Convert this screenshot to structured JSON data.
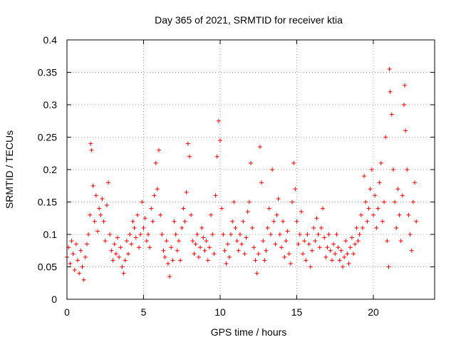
{
  "chart_data": {
    "type": "scatter",
    "title": "Day 365 of 2021, SRMTID for receiver ktia",
    "xlabel": "GPS time / hours",
    "ylabel": "SRMTID / TECUs",
    "xlim": [
      0,
      24
    ],
    "ylim": [
      0,
      0.4
    ],
    "x_ticks": [
      0,
      5,
      10,
      15,
      20
    ],
    "x_tick_labels": [
      "0",
      "5",
      "10",
      "15",
      "20"
    ],
    "y_ticks": [
      0,
      0.05,
      0.1,
      0.15,
      0.2,
      0.25,
      0.3,
      0.35,
      0.4
    ],
    "y_tick_labels": [
      "0",
      "0.05",
      "0.1",
      "0.15",
      "0.2",
      "0.25",
      "0.3",
      "0.35",
      "0.4"
    ],
    "grid": true,
    "marker": "+",
    "series": [
      {
        "name": "SRMTID",
        "color": "#ff0000",
        "points": [
          [
            0.0,
            0.065
          ],
          [
            0.1,
            0.08
          ],
          [
            0.2,
            0.055
          ],
          [
            0.3,
            0.09
          ],
          [
            0.4,
            0.07
          ],
          [
            0.5,
            0.045
          ],
          [
            0.6,
            0.085
          ],
          [
            0.7,
            0.06
          ],
          [
            0.8,
            0.04
          ],
          [
            0.9,
            0.075
          ],
          [
            1.0,
            0.05
          ],
          [
            1.1,
            0.03
          ],
          [
            1.2,
            0.065
          ],
          [
            1.3,
            0.085
          ],
          [
            1.4,
            0.1
          ],
          [
            1.5,
            0.13
          ],
          [
            1.55,
            0.24
          ],
          [
            1.6,
            0.23
          ],
          [
            1.7,
            0.175
          ],
          [
            1.8,
            0.12
          ],
          [
            1.9,
            0.16
          ],
          [
            2.0,
            0.105
          ],
          [
            2.1,
            0.14
          ],
          [
            2.2,
            0.13
          ],
          [
            2.3,
            0.155
          ],
          [
            2.4,
            0.12
          ],
          [
            2.5,
            0.09
          ],
          [
            2.6,
            0.145
          ],
          [
            2.7,
            0.18
          ],
          [
            2.8,
            0.1
          ],
          [
            2.9,
            0.075
          ],
          [
            3.0,
            0.06
          ],
          [
            3.1,
            0.085
          ],
          [
            3.2,
            0.07
          ],
          [
            3.3,
            0.095
          ],
          [
            3.4,
            0.065
          ],
          [
            3.5,
            0.08
          ],
          [
            3.6,
            0.05
          ],
          [
            3.7,
            0.04
          ],
          [
            3.8,
            0.06
          ],
          [
            3.9,
            0.09
          ],
          [
            4.0,
            0.07
          ],
          [
            4.1,
            0.1
          ],
          [
            4.2,
            0.085
          ],
          [
            4.3,
            0.12
          ],
          [
            4.4,
            0.11
          ],
          [
            4.5,
            0.095
          ],
          [
            4.6,
            0.13
          ],
          [
            4.7,
            0.08
          ],
          [
            4.8,
            0.1
          ],
          [
            4.9,
            0.15
          ],
          [
            5.0,
            0.11
          ],
          [
            5.1,
            0.125
          ],
          [
            5.2,
            0.09
          ],
          [
            5.3,
            0.1
          ],
          [
            5.4,
            0.08
          ],
          [
            5.5,
            0.14
          ],
          [
            5.6,
            0.12
          ],
          [
            5.7,
            0.16
          ],
          [
            5.8,
            0.21
          ],
          [
            5.9,
            0.17
          ],
          [
            6.0,
            0.23
          ],
          [
            6.1,
            0.13
          ],
          [
            6.2,
            0.1
          ],
          [
            6.3,
            0.075
          ],
          [
            6.4,
            0.065
          ],
          [
            6.5,
            0.09
          ],
          [
            6.6,
            0.055
          ],
          [
            6.7,
            0.035
          ],
          [
            6.8,
            0.08
          ],
          [
            6.9,
            0.06
          ],
          [
            7.0,
            0.12
          ],
          [
            7.1,
            0.1
          ],
          [
            7.2,
            0.075
          ],
          [
            7.3,
            0.09
          ],
          [
            7.4,
            0.06
          ],
          [
            7.5,
            0.11
          ],
          [
            7.6,
            0.14
          ],
          [
            7.7,
            0.12
          ],
          [
            7.8,
            0.165
          ],
          [
            7.9,
            0.24
          ],
          [
            8.0,
            0.22
          ],
          [
            8.1,
            0.13
          ],
          [
            8.2,
            0.09
          ],
          [
            8.3,
            0.07
          ],
          [
            8.4,
            0.085
          ],
          [
            8.5,
            0.1
          ],
          [
            8.6,
            0.065
          ],
          [
            8.7,
            0.08
          ],
          [
            8.8,
            0.11
          ],
          [
            8.9,
            0.095
          ],
          [
            9.0,
            0.075
          ],
          [
            9.1,
            0.09
          ],
          [
            9.2,
            0.06
          ],
          [
            9.3,
            0.08
          ],
          [
            9.4,
            0.13
          ],
          [
            9.5,
            0.1
          ],
          [
            9.6,
            0.07
          ],
          [
            9.7,
            0.16
          ],
          [
            9.8,
            0.22
          ],
          [
            9.9,
            0.275
          ],
          [
            10.0,
            0.245
          ],
          [
            10.1,
            0.14
          ],
          [
            10.2,
            0.1
          ],
          [
            10.3,
            0.075
          ],
          [
            10.4,
            0.055
          ],
          [
            10.5,
            0.085
          ],
          [
            10.6,
            0.065
          ],
          [
            10.7,
            0.1
          ],
          [
            10.8,
            0.12
          ],
          [
            10.9,
            0.15
          ],
          [
            11.0,
            0.11
          ],
          [
            11.1,
            0.09
          ],
          [
            11.2,
            0.075
          ],
          [
            11.3,
            0.1
          ],
          [
            11.4,
            0.085
          ],
          [
            11.5,
            0.12
          ],
          [
            11.6,
            0.07
          ],
          [
            11.7,
            0.095
          ],
          [
            11.8,
            0.135
          ],
          [
            11.9,
            0.15
          ],
          [
            12.0,
            0.21
          ],
          [
            12.1,
            0.11
          ],
          [
            12.2,
            0.08
          ],
          [
            12.3,
            0.06
          ],
          [
            12.4,
            0.04
          ],
          [
            12.5,
            0.07
          ],
          [
            12.6,
            0.235
          ],
          [
            12.7,
            0.18
          ],
          [
            12.8,
            0.09
          ],
          [
            12.9,
            0.06
          ],
          [
            13.0,
            0.075
          ],
          [
            13.1,
            0.11
          ],
          [
            13.2,
            0.14
          ],
          [
            13.3,
            0.1
          ],
          [
            13.4,
            0.2
          ],
          [
            13.5,
            0.12
          ],
          [
            13.6,
            0.085
          ],
          [
            13.7,
            0.13
          ],
          [
            13.8,
            0.155
          ],
          [
            13.9,
            0.1
          ],
          [
            14.0,
            0.08
          ],
          [
            14.1,
            0.12
          ],
          [
            14.2,
            0.065
          ],
          [
            14.3,
            0.09
          ],
          [
            14.4,
            0.105
          ],
          [
            14.5,
            0.07
          ],
          [
            14.6,
            0.055
          ],
          [
            14.7,
            0.15
          ],
          [
            14.8,
            0.21
          ],
          [
            14.9,
            0.17
          ],
          [
            15.0,
            0.12
          ],
          [
            15.1,
            0.085
          ],
          [
            15.2,
            0.1
          ],
          [
            15.3,
            0.135
          ],
          [
            15.4,
            0.07
          ],
          [
            15.5,
            0.09
          ],
          [
            15.6,
            0.06
          ],
          [
            15.7,
            0.1
          ],
          [
            15.8,
            0.085
          ],
          [
            15.9,
            0.05
          ],
          [
            16.0,
            0.075
          ],
          [
            16.1,
            0.11
          ],
          [
            16.2,
            0.09
          ],
          [
            16.3,
            0.125
          ],
          [
            16.4,
            0.1
          ],
          [
            16.5,
            0.08
          ],
          [
            16.6,
            0.11
          ],
          [
            16.7,
            0.14
          ],
          [
            16.8,
            0.095
          ],
          [
            16.9,
            0.065
          ],
          [
            17.0,
            0.08
          ],
          [
            17.1,
            0.1
          ],
          [
            17.2,
            0.075
          ],
          [
            17.3,
            0.06
          ],
          [
            17.4,
            0.085
          ],
          [
            17.5,
            0.07
          ],
          [
            17.6,
            0.1
          ],
          [
            17.7,
            0.08
          ],
          [
            17.8,
            0.06
          ],
          [
            17.9,
            0.075
          ],
          [
            18.0,
            0.05
          ],
          [
            18.1,
            0.065
          ],
          [
            18.2,
            0.09
          ],
          [
            18.3,
            0.07
          ],
          [
            18.4,
            0.055
          ],
          [
            18.5,
            0.08
          ],
          [
            18.6,
            0.095
          ],
          [
            18.7,
            0.07
          ],
          [
            18.8,
            0.085
          ],
          [
            18.9,
            0.11
          ],
          [
            19.0,
            0.09
          ],
          [
            19.1,
            0.1
          ],
          [
            19.2,
            0.13
          ],
          [
            19.3,
            0.11
          ],
          [
            19.4,
            0.19
          ],
          [
            19.5,
            0.15
          ],
          [
            19.6,
            0.12
          ],
          [
            19.7,
            0.14
          ],
          [
            19.8,
            0.17
          ],
          [
            19.9,
            0.2
          ],
          [
            20.0,
            0.13
          ],
          [
            20.1,
            0.16
          ],
          [
            20.2,
            0.11
          ],
          [
            20.3,
            0.14
          ],
          [
            20.4,
            0.18
          ],
          [
            20.5,
            0.21
          ],
          [
            20.6,
            0.12
          ],
          [
            20.7,
            0.15
          ],
          [
            20.8,
            0.25
          ],
          [
            20.9,
            0.09
          ],
          [
            21.0,
            0.05
          ],
          [
            21.05,
            0.355
          ],
          [
            21.1,
            0.32
          ],
          [
            21.2,
            0.285
          ],
          [
            21.3,
            0.2
          ],
          [
            21.4,
            0.15
          ],
          [
            21.5,
            0.11
          ],
          [
            21.6,
            0.17
          ],
          [
            21.7,
            0.13
          ],
          [
            21.8,
            0.09
          ],
          [
            21.9,
            0.16
          ],
          [
            22.0,
            0.3
          ],
          [
            22.05,
            0.33
          ],
          [
            22.1,
            0.26
          ],
          [
            22.2,
            0.2
          ],
          [
            22.3,
            0.13
          ],
          [
            22.4,
            0.1
          ],
          [
            22.5,
            0.075
          ],
          [
            22.6,
            0.15
          ],
          [
            22.7,
            0.18
          ],
          [
            22.8,
            0.12
          ]
        ]
      }
    ]
  }
}
